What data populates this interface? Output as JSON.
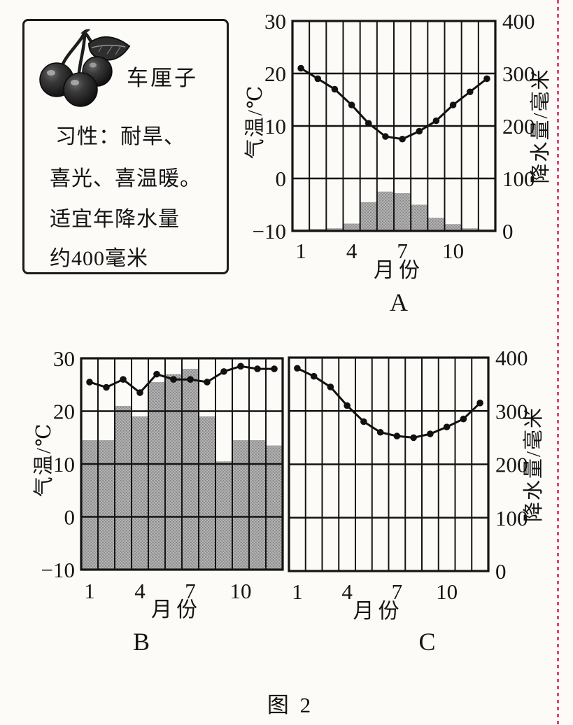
{
  "page": {
    "figure_label": "图 2",
    "background_color": "#fcfbf7",
    "margin_line_color": "#d84a7d"
  },
  "info_box": {
    "image": "cherries-with-stems-and-leaf",
    "title": "车厘子",
    "lines": [
      "习性：耐旱、",
      "喜光、喜温暖。",
      "适宜年降水量",
      "约400毫米"
    ]
  },
  "chart_data": [
    {
      "label": "A",
      "type": "bar",
      "subtype": "climate-graph-line-and-bars",
      "months": [
        1,
        2,
        3,
        4,
        5,
        6,
        7,
        8,
        9,
        10,
        11,
        12
      ],
      "x_axis": {
        "title": "月份",
        "ticks": [
          1,
          4,
          7,
          10
        ]
      },
      "left_axis": {
        "title": "气温/℃",
        "ticks": [
          30,
          20,
          10,
          0,
          -10
        ],
        "range": [
          -10,
          30
        ]
      },
      "right_axis": {
        "title": "降水量/毫米",
        "ticks": [
          400,
          300,
          200,
          100,
          0
        ],
        "range": [
          0,
          400
        ]
      },
      "line": {
        "name": "气温",
        "axis": "left",
        "values": [
          21,
          19,
          17,
          14,
          10.5,
          8,
          7.5,
          9,
          11,
          14,
          16.5,
          19
        ]
      },
      "bars": {
        "name": "降水量",
        "axis": "right",
        "values": [
          3,
          4,
          5,
          14,
          55,
          75,
          72,
          50,
          25,
          13,
          5,
          3
        ]
      },
      "grid": {
        "columns": 12,
        "rows": 4
      }
    },
    {
      "label": "B",
      "type": "bar",
      "subtype": "climate-graph-line-and-bars",
      "months": [
        1,
        2,
        3,
        4,
        5,
        6,
        7,
        8,
        9,
        10,
        11,
        12
      ],
      "x_axis": {
        "title": "月份",
        "ticks": [
          1,
          4,
          7,
          10
        ]
      },
      "left_axis": {
        "title": "气温/℃",
        "ticks": [
          30,
          20,
          10,
          0,
          -10
        ],
        "range": [
          -10,
          30
        ]
      },
      "right_axis": {
        "title": null,
        "ticks": null,
        "range": [
          0,
          400
        ]
      },
      "line": {
        "name": "气温",
        "axis": "left",
        "values": [
          25.5,
          24.5,
          26,
          23.5,
          27,
          26,
          26,
          25.5,
          27.5,
          28.5,
          28,
          28
        ]
      },
      "bars": {
        "name": "降水量",
        "axis": "right",
        "values": [
          245,
          245,
          310,
          290,
          355,
          370,
          380,
          290,
          205,
          245,
          245,
          235
        ]
      },
      "grid": {
        "columns": 12,
        "rows": 4
      }
    },
    {
      "label": "C",
      "type": "line",
      "subtype": "climate-graph-line-only",
      "months": [
        1,
        2,
        3,
        4,
        5,
        6,
        7,
        8,
        9,
        10,
        11,
        12
      ],
      "x_axis": {
        "title": "月份",
        "ticks": [
          1,
          4,
          7,
          10
        ]
      },
      "left_axis": {
        "title": null,
        "ticks": null,
        "range": [
          -10,
          30
        ]
      },
      "right_axis": {
        "title": "降水量/毫米",
        "ticks": [
          400,
          300,
          200,
          100,
          0
        ],
        "range": [
          0,
          400
        ]
      },
      "line": {
        "name": "curve",
        "axis": "right",
        "values": [
          380,
          365,
          345,
          310,
          280,
          260,
          253,
          250,
          257,
          270,
          285,
          315
        ]
      },
      "bars": null,
      "grid": {
        "columns": 12,
        "rows": 4
      }
    }
  ]
}
